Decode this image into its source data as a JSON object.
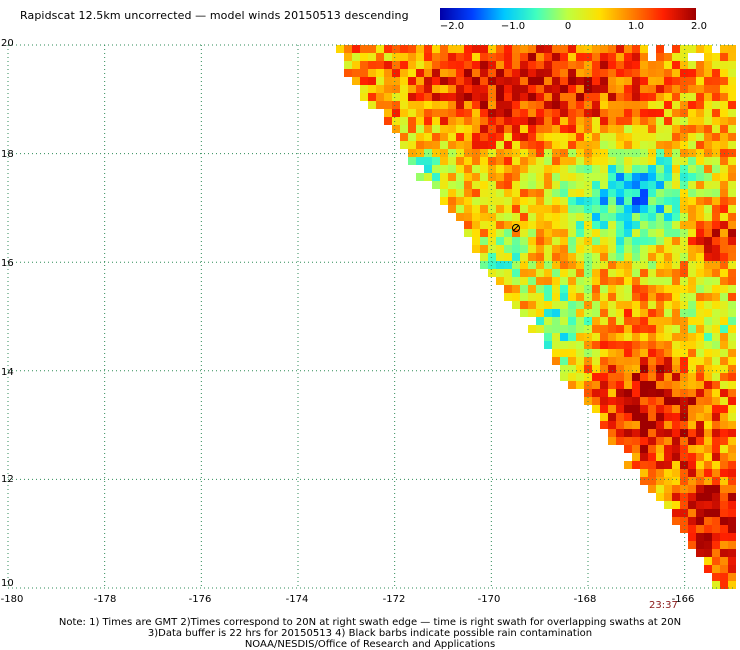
{
  "header": {
    "title": "Rapidscat 12.5km uncorrected — model winds 20150513 descending"
  },
  "colorbar": {
    "labels": [
      "−2.0",
      "−1.0",
      "0",
      "1.0",
      "2.0"
    ],
    "range": [
      -2.0,
      2.0
    ],
    "colors": [
      "#0000aa",
      "#0040ff",
      "#00c8ff",
      "#40ffc0",
      "#c0ff40",
      "#ffe000",
      "#ff8000",
      "#ff2000",
      "#a00000"
    ]
  },
  "map": {
    "lon_range": [
      -180,
      -165
    ],
    "lat_range": [
      10,
      20
    ],
    "x_ticks": [
      "-180",
      "-178",
      "-176",
      "-174",
      "-172",
      "-170",
      "-168",
      "-166"
    ],
    "y_ticks": [
      "20",
      "18",
      "16",
      "14",
      "12",
      "10"
    ],
    "gridline_color": "#2e8b57"
  },
  "swath_time": "23:37",
  "footer": {
    "note1": "Note: 1) Times are GMT 2)Times correspond to 20N at right swath edge — time is right swath for overlapping swaths at 20N",
    "note2": "3)Data buffer is 22 hrs for 20150513 4) Black barbs indicate possible rain contamination",
    "credit": "NOAA/NESDIS/Office of Research and Applications"
  }
}
